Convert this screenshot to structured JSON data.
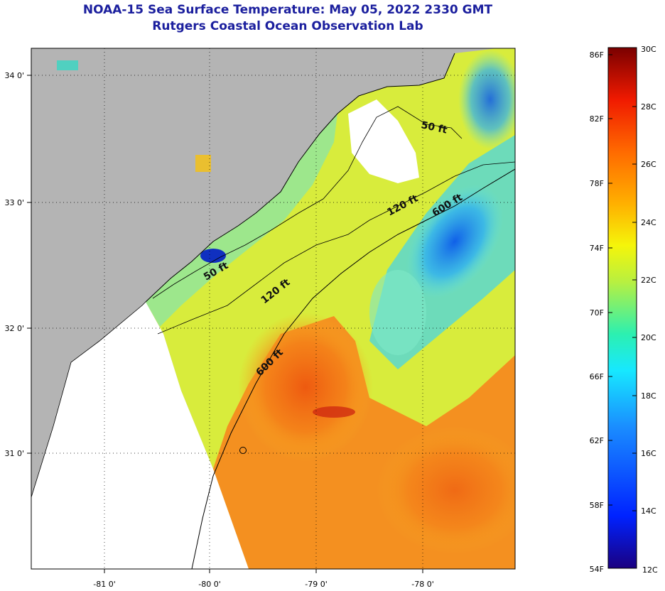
{
  "title": "NOAA-15 Sea Surface Temperature:  May 05, 2022 2330 GMT",
  "subtitle": "Rutgers Coastal Ocean Observation Lab",
  "map": {
    "lon_labels": [
      "-81 0'",
      "-80 0'",
      "-79 0'",
      "-78 0'"
    ],
    "lat_labels": [
      "34 0'",
      "33 0'",
      "32 0'",
      "31 0'"
    ],
    "depth_labels": [
      "50 ft",
      "50 ft",
      "120 ft",
      "120 ft",
      "600 ft",
      "600 ft"
    ],
    "colors": {
      "land": "#b4b4b4",
      "no_data": "#ffffff",
      "frame": "#000000"
    }
  },
  "colorbar": {
    "fahrenheit_labels": [
      "86F",
      "82F",
      "78F",
      "74F",
      "70F",
      "66F",
      "62F",
      "58F",
      "54F"
    ],
    "celsius_labels": [
      "30C",
      "28C",
      "26C",
      "24C",
      "22C",
      "20C",
      "18C",
      "16C",
      "14C",
      "12C"
    ]
  }
}
